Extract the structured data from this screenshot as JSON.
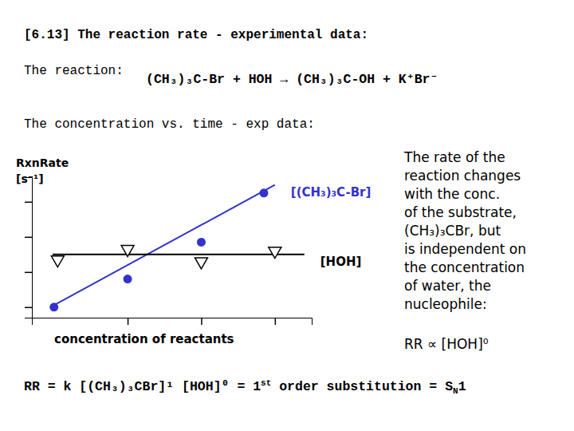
{
  "slide": {
    "title": "[6.13] The reaction rate - experimental data:",
    "reaction_label": "The reaction:",
    "reaction": "(CH₃)₃C-Br + HOH → (CH₃)₃C-OH + K⁺Br⁻",
    "subtitle": "The concentration vs. time - exp data:",
    "notes": [
      "The rate of the",
      "reaction changes",
      "with the conc.",
      "of the substrate,",
      "(CH₃)₃CBr, but",
      "is independent on",
      "the concentration",
      "of water, the",
      "nucleophile:"
    ],
    "proportionality": "RR ∝ [HOH]⁰",
    "conclusion": [
      {
        "text": "RR = k [(CH₃)₃CBr]¹ [HOH]⁰ = 1"
      },
      {
        "text": "st",
        "sup": true
      },
      {
        "text": " order substitution = S"
      },
      {
        "text": "N",
        "sub": true
      },
      {
        "text": "1"
      }
    ]
  },
  "chart_data": {
    "type": "scatter",
    "y_label": [
      "RxnRate",
      "[s⁻¹]"
    ],
    "x_label": "concentration of reactants",
    "xlim": [
      -0.3,
      3.5
    ],
    "ylim": [
      0.7,
      4.7
    ],
    "xticks": [
      1,
      2,
      3
    ],
    "yticks": [
      1,
      2,
      3,
      4
    ],
    "tick_labels": false,
    "grid": false,
    "series": [
      {
        "name": "[(CH₃)₃C-Br]",
        "type": "scatter",
        "color": "#3333cc",
        "marker": "circle",
        "x": [
          0,
          1,
          2,
          2.85
        ],
        "values": [
          1.0,
          1.8,
          2.85,
          4.25
        ]
      },
      {
        "name": "[HOH]",
        "type": "scatter",
        "color": "#000000",
        "marker": "triangle-down",
        "x": [
          0.05,
          1,
          2,
          3
        ],
        "values": [
          2.35,
          2.65,
          2.3,
          2.6
        ]
      },
      {
        "type": "line",
        "color": "#3333cc",
        "line_style": "solid",
        "x": [
          -0.05,
          3.0
        ],
        "values": [
          1.0,
          4.48
        ]
      },
      {
        "type": "line",
        "color": "#000000",
        "line_style": "solid",
        "x": [
          -0.02,
          3.4
        ],
        "values": [
          2.5,
          2.5
        ]
      }
    ]
  }
}
